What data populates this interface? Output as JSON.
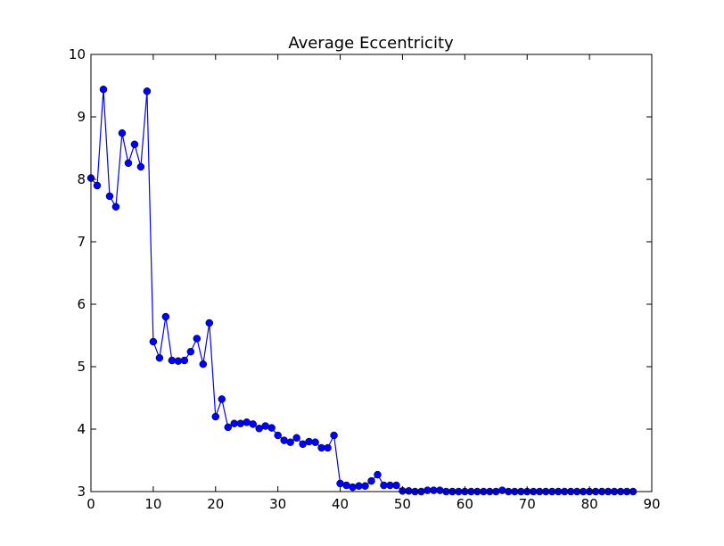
{
  "chart_data": {
    "type": "line",
    "title": "Average Eccentricity",
    "xlabel": "",
    "ylabel": "",
    "xlim": [
      0,
      90
    ],
    "ylim": [
      3,
      10
    ],
    "xticks": [
      0,
      10,
      20,
      30,
      40,
      50,
      60,
      70,
      80,
      90
    ],
    "xtick_labels": [
      "0",
      "10",
      "20",
      "30",
      "40",
      "50",
      "60",
      "70",
      "80",
      "90"
    ],
    "yticks": [
      3,
      4,
      5,
      6,
      7,
      8,
      9,
      10
    ],
    "ytick_labels": [
      "3",
      "4",
      "5",
      "6",
      "7",
      "8",
      "9",
      "10"
    ],
    "grid": false,
    "series": [
      {
        "color": "#0000ff",
        "marker": "circle",
        "x": [
          0,
          1,
          2,
          3,
          4,
          5,
          6,
          7,
          8,
          9,
          10,
          11,
          12,
          13,
          14,
          15,
          16,
          17,
          18,
          19,
          20,
          21,
          22,
          23,
          24,
          25,
          26,
          27,
          28,
          29,
          30,
          31,
          32,
          33,
          34,
          35,
          36,
          37,
          38,
          39,
          40,
          41,
          42,
          43,
          44,
          45,
          46,
          47,
          48,
          49,
          50,
          51,
          52,
          53,
          54,
          55,
          56,
          57,
          58,
          59,
          60,
          61,
          62,
          63,
          64,
          65,
          66,
          67,
          68,
          69,
          70,
          71,
          72,
          73,
          74,
          75,
          76,
          77,
          78,
          79,
          80,
          81,
          82,
          83,
          84,
          85,
          86,
          87
        ],
        "values": [
          8.02,
          7.9,
          9.44,
          7.73,
          7.56,
          8.74,
          8.26,
          8.56,
          8.2,
          9.41,
          5.4,
          5.14,
          5.8,
          5.1,
          5.09,
          5.1,
          5.24,
          5.45,
          5.04,
          5.7,
          4.2,
          4.48,
          4.03,
          4.09,
          4.09,
          4.11,
          4.08,
          4.01,
          4.05,
          4.02,
          3.9,
          3.82,
          3.79,
          3.86,
          3.76,
          3.8,
          3.79,
          3.7,
          3.7,
          3.9,
          3.13,
          3.1,
          3.07,
          3.09,
          3.09,
          3.17,
          3.27,
          3.1,
          3.1,
          3.1,
          3.01,
          3.01,
          3.0,
          3.0,
          3.02,
          3.02,
          3.02,
          3.0,
          3.0,
          3.0,
          3.0,
          3.0,
          3.0,
          3.0,
          3.0,
          3.0,
          3.02,
          3.0,
          3.0,
          3.0,
          3.0,
          3.0,
          3.0,
          3.0,
          3.0,
          3.0,
          3.0,
          3.0,
          3.0,
          3.0,
          3.0,
          3.0,
          3.0,
          3.0,
          3.0,
          3.0,
          3.0,
          3.0
        ]
      }
    ]
  }
}
